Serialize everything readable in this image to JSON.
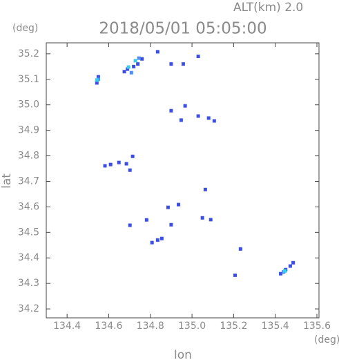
{
  "chart_data": {
    "type": "scatter",
    "header": "ALT(km) 2.0",
    "title": "2018/05/01 05:05:00",
    "ylabel": "lat",
    "xlabel": "lon",
    "yunit": "(deg)",
    "xunit": "(deg)",
    "xlim": [
      134.3,
      135.61
    ],
    "ylim": [
      34.165,
      35.243
    ],
    "xticks": [
      134.4,
      134.6,
      134.8,
      {
        "value": 135,
        "label": "135.0"
      },
      135.2,
      135.4,
      135.6
    ],
    "yticks": [
      34.2,
      34.3,
      34.4,
      34.5,
      34.6,
      34.7,
      34.8,
      34.9,
      {
        "value": 35,
        "label": "35.0"
      },
      35.1,
      35.2
    ],
    "series": [
      {
        "color": "#3d4fe0",
        "x": [
          134.543,
          134.55,
          134.675,
          134.69,
          134.72,
          134.74,
          134.76,
          134.835,
          135.03,
          134.9,
          134.958,
          134.9,
          134.967,
          135.03,
          134.948,
          135.08,
          135.107,
          134.582,
          134.609,
          134.649,
          134.685,
          134.702,
          134.715,
          134.702,
          134.782,
          134.885,
          134.935,
          134.9,
          134.808,
          134.835,
          134.855,
          135.064,
          135.05,
          135.09,
          135.233,
          135.207,
          135.426,
          135.45,
          135.472,
          135.486
        ],
        "y": [
          35.086,
          35.11,
          35.13,
          35.14,
          35.15,
          35.16,
          35.18,
          35.208,
          35.19,
          35.16,
          35.16,
          34.977,
          34.996,
          34.956,
          34.94,
          34.948,
          34.937,
          34.761,
          34.766,
          34.774,
          34.769,
          34.744,
          34.798,
          34.528,
          34.549,
          34.598,
          34.609,
          34.53,
          34.46,
          34.47,
          34.476,
          34.668,
          34.557,
          34.55,
          34.435,
          34.332,
          34.338,
          34.354,
          34.368,
          34.381
        ]
      },
      {
        "color": "#4f8ef0",
        "x": [
          134.745,
          134.709,
          134.55,
          135.44
        ],
        "y": [
          35.183,
          35.126,
          35.1,
          34.345
        ]
      },
      {
        "color": "#3ccbe8",
        "x": [
          134.543,
          134.695,
          134.728,
          135.446
        ],
        "y": [
          35.097,
          35.148,
          35.173,
          34.349
        ]
      }
    ]
  }
}
